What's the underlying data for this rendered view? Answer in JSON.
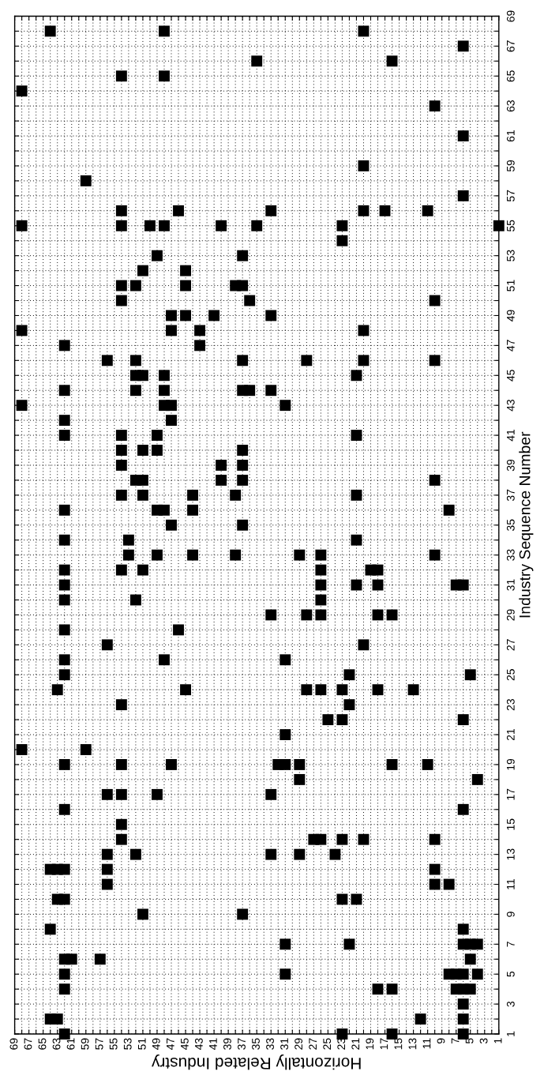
{
  "chart_data": {
    "type": "scatter",
    "xlabel": "Horizontally Related Industry",
    "ylabel": "Industry Sequence Number",
    "marker": "square",
    "grid": true,
    "xlim": [
      69,
      1
    ],
    "ylim": [
      1,
      69
    ],
    "xticks": [
      1,
      {
        "value": 2,
        "label": null
      },
      3,
      {
        "value": 4,
        "label": null
      },
      5,
      {
        "value": 6,
        "label": null
      },
      7,
      {
        "value": 8,
        "label": null
      },
      9,
      {
        "value": 10,
        "label": null
      },
      11,
      {
        "value": 12,
        "label": null
      },
      13,
      {
        "value": 14,
        "label": null
      },
      15,
      {
        "value": 16,
        "label": null
      },
      17,
      {
        "value": 18,
        "label": null
      },
      19,
      {
        "value": 20,
        "label": null
      },
      21,
      {
        "value": 22,
        "label": null
      },
      23,
      {
        "value": 24,
        "label": null
      },
      25,
      {
        "value": 26,
        "label": null
      },
      27,
      {
        "value": 28,
        "label": null
      },
      29,
      {
        "value": 30,
        "label": null
      },
      31,
      {
        "value": 32,
        "label": null
      },
      33,
      {
        "value": 34,
        "label": null
      },
      35,
      {
        "value": 36,
        "label": null
      },
      37,
      {
        "value": 38,
        "label": null
      },
      39,
      {
        "value": 40,
        "label": null
      },
      41,
      {
        "value": 42,
        "label": null
      },
      43,
      {
        "value": 44,
        "label": null
      },
      45,
      {
        "value": 46,
        "label": null
      },
      47,
      {
        "value": 48,
        "label": null
      },
      49,
      {
        "value": 50,
        "label": null
      },
      51,
      {
        "value": 52,
        "label": null
      },
      53,
      {
        "value": 54,
        "label": null
      },
      55,
      {
        "value": 56,
        "label": null
      },
      57,
      {
        "value": 58,
        "label": null
      },
      59,
      {
        "value": 60,
        "label": null
      },
      61,
      {
        "value": 62,
        "label": null
      },
      63,
      {
        "value": 64,
        "label": null
      },
      65,
      {
        "value": 66,
        "label": null
      },
      67,
      {
        "value": 68,
        "label": null
      },
      69
    ],
    "yticks": [
      1,
      {
        "value": 2,
        "label": null
      },
      3,
      {
        "value": 4,
        "label": null
      },
      5,
      {
        "value": 6,
        "label": null
      },
      7,
      {
        "value": 8,
        "label": null
      },
      9,
      {
        "value": 10,
        "label": null
      },
      11,
      {
        "value": 12,
        "label": null
      },
      13,
      {
        "value": 14,
        "label": null
      },
      15,
      {
        "value": 16,
        "label": null
      },
      17,
      {
        "value": 18,
        "label": null
      },
      19,
      {
        "value": 20,
        "label": null
      },
      21,
      {
        "value": 22,
        "label": null
      },
      23,
      {
        "value": 24,
        "label": null
      },
      25,
      {
        "value": 26,
        "label": null
      },
      27,
      {
        "value": 28,
        "label": null
      },
      29,
      {
        "value": 30,
        "label": null
      },
      31,
      {
        "value": 32,
        "label": null
      },
      33,
      {
        "value": 34,
        "label": null
      },
      35,
      {
        "value": 36,
        "label": null
      },
      37,
      {
        "value": 38,
        "label": null
      },
      39,
      {
        "value": 40,
        "label": null
      },
      41,
      {
        "value": 42,
        "label": null
      },
      43,
      {
        "value": 44,
        "label": null
      },
      45,
      {
        "value": 46,
        "label": null
      },
      47,
      {
        "value": 48,
        "label": null
      },
      49,
      {
        "value": 50,
        "label": null
      },
      51,
      {
        "value": 52,
        "label": null
      },
      53,
      {
        "value": 54,
        "label": null
      },
      55,
      {
        "value": 56,
        "label": null
      },
      57,
      {
        "value": 58,
        "label": null
      },
      59,
      {
        "value": 60,
        "label": null
      },
      61,
      {
        "value": 62,
        "label": null
      },
      63,
      {
        "value": 64,
        "label": null
      },
      65,
      {
        "value": 66,
        "label": null
      },
      67,
      {
        "value": 68,
        "label": null
      },
      69
    ],
    "x": [
      64,
      48,
      20,
      6,
      35,
      16,
      54,
      48,
      68,
      10,
      6,
      20,
      59,
      6,
      54,
      46,
      33,
      20,
      17,
      11,
      68,
      54,
      50,
      48,
      40,
      35,
      23,
      1,
      23,
      49,
      37,
      51,
      45,
      54,
      52,
      45,
      38,
      37,
      54,
      36,
      10,
      47,
      45,
      41,
      33,
      68,
      47,
      43,
      20,
      62,
      43,
      56,
      52,
      37,
      28,
      20,
      10,
      52,
      51,
      48,
      21,
      62,
      52,
      48,
      37,
      36,
      33,
      68,
      48,
      47,
      31,
      62,
      47,
      62,
      54,
      49,
      21,
      54,
      51,
      49,
      37,
      54,
      40,
      37,
      52,
      51,
      40,
      37,
      10,
      54,
      51,
      44,
      38,
      21,
      62,
      49,
      48,
      44,
      8,
      47,
      37,
      62,
      53,
      21,
      53,
      49,
      44,
      38,
      29,
      26,
      10,
      62,
      54,
      51,
      26,
      19,
      18,
      62,
      26,
      21,
      18,
      7,
      6,
      62,
      52,
      26,
      33,
      28,
      26,
      18,
      16,
      62,
      46,
      56,
      20,
      62,
      48,
      31,
      62,
      22,
      5,
      63,
      45,
      28,
      26,
      23,
      18,
      13,
      54,
      22,
      25,
      23,
      6,
      31,
      68,
      59,
      62,
      54,
      47,
      32,
      31,
      29,
      16,
      11,
      29,
      4,
      56,
      54,
      49,
      33,
      62,
      6,
      54,
      54,
      27,
      26,
      23,
      20,
      10,
      56,
      52,
      33,
      29,
      24,
      64,
      63,
      62,
      56,
      10,
      56,
      10,
      8,
      63,
      62,
      23,
      21,
      51,
      37,
      64,
      6,
      31,
      22,
      6,
      5,
      4,
      62,
      61,
      57,
      5,
      62,
      31,
      8,
      7,
      6,
      4,
      62,
      18,
      16,
      7,
      6,
      5,
      6,
      64,
      63,
      12,
      6,
      62,
      23,
      16,
      6
    ],
    "series": [
      {
        "color": "#000000",
        "values": [
          68,
          68,
          68,
          67,
          66,
          66,
          65,
          65,
          64,
          63,
          61,
          59,
          58,
          57,
          56,
          56,
          56,
          56,
          56,
          56,
          55,
          55,
          55,
          55,
          55,
          55,
          55,
          55,
          54,
          53,
          53,
          52,
          52,
          51,
          51,
          51,
          51,
          51,
          50,
          50,
          50,
          49,
          49,
          49,
          49,
          48,
          48,
          48,
          48,
          47,
          47,
          46,
          46,
          46,
          46,
          46,
          46,
          45,
          45,
          45,
          45,
          44,
          44,
          44,
          44,
          44,
          44,
          43,
          43,
          43,
          43,
          42,
          42,
          41,
          41,
          41,
          41,
          40,
          40,
          40,
          40,
          39,
          39,
          39,
          38,
          38,
          38,
          38,
          38,
          37,
          37,
          37,
          37,
          37,
          36,
          36,
          36,
          36,
          36,
          35,
          35,
          34,
          34,
          34,
          33,
          33,
          33,
          33,
          33,
          33,
          33,
          32,
          32,
          32,
          32,
          32,
          32,
          31,
          31,
          31,
          31,
          31,
          31,
          30,
          30,
          30,
          29,
          29,
          29,
          29,
          29,
          28,
          28,
          27,
          27,
          26,
          26,
          26,
          25,
          25,
          25,
          24,
          24,
          24,
          24,
          24,
          24,
          24,
          23,
          23,
          22,
          22,
          22,
          21,
          20,
          20,
          19,
          19,
          19,
          19,
          19,
          19,
          19,
          19,
          18,
          18,
          17,
          17,
          17,
          17,
          16,
          16,
          15,
          14,
          14,
          14,
          14,
          14,
          14,
          13,
          13,
          13,
          13,
          13,
          12,
          12,
          12,
          12,
          12,
          11,
          11,
          11,
          10,
          10,
          10,
          10,
          9,
          9,
          8,
          8,
          7,
          7,
          7,
          7,
          7,
          6,
          6,
          6,
          6,
          5,
          5,
          5,
          5,
          5,
          5,
          4,
          4,
          4,
          4,
          4,
          4,
          3,
          2,
          2,
          2,
          2,
          1,
          1,
          1,
          1
        ]
      }
    ]
  }
}
